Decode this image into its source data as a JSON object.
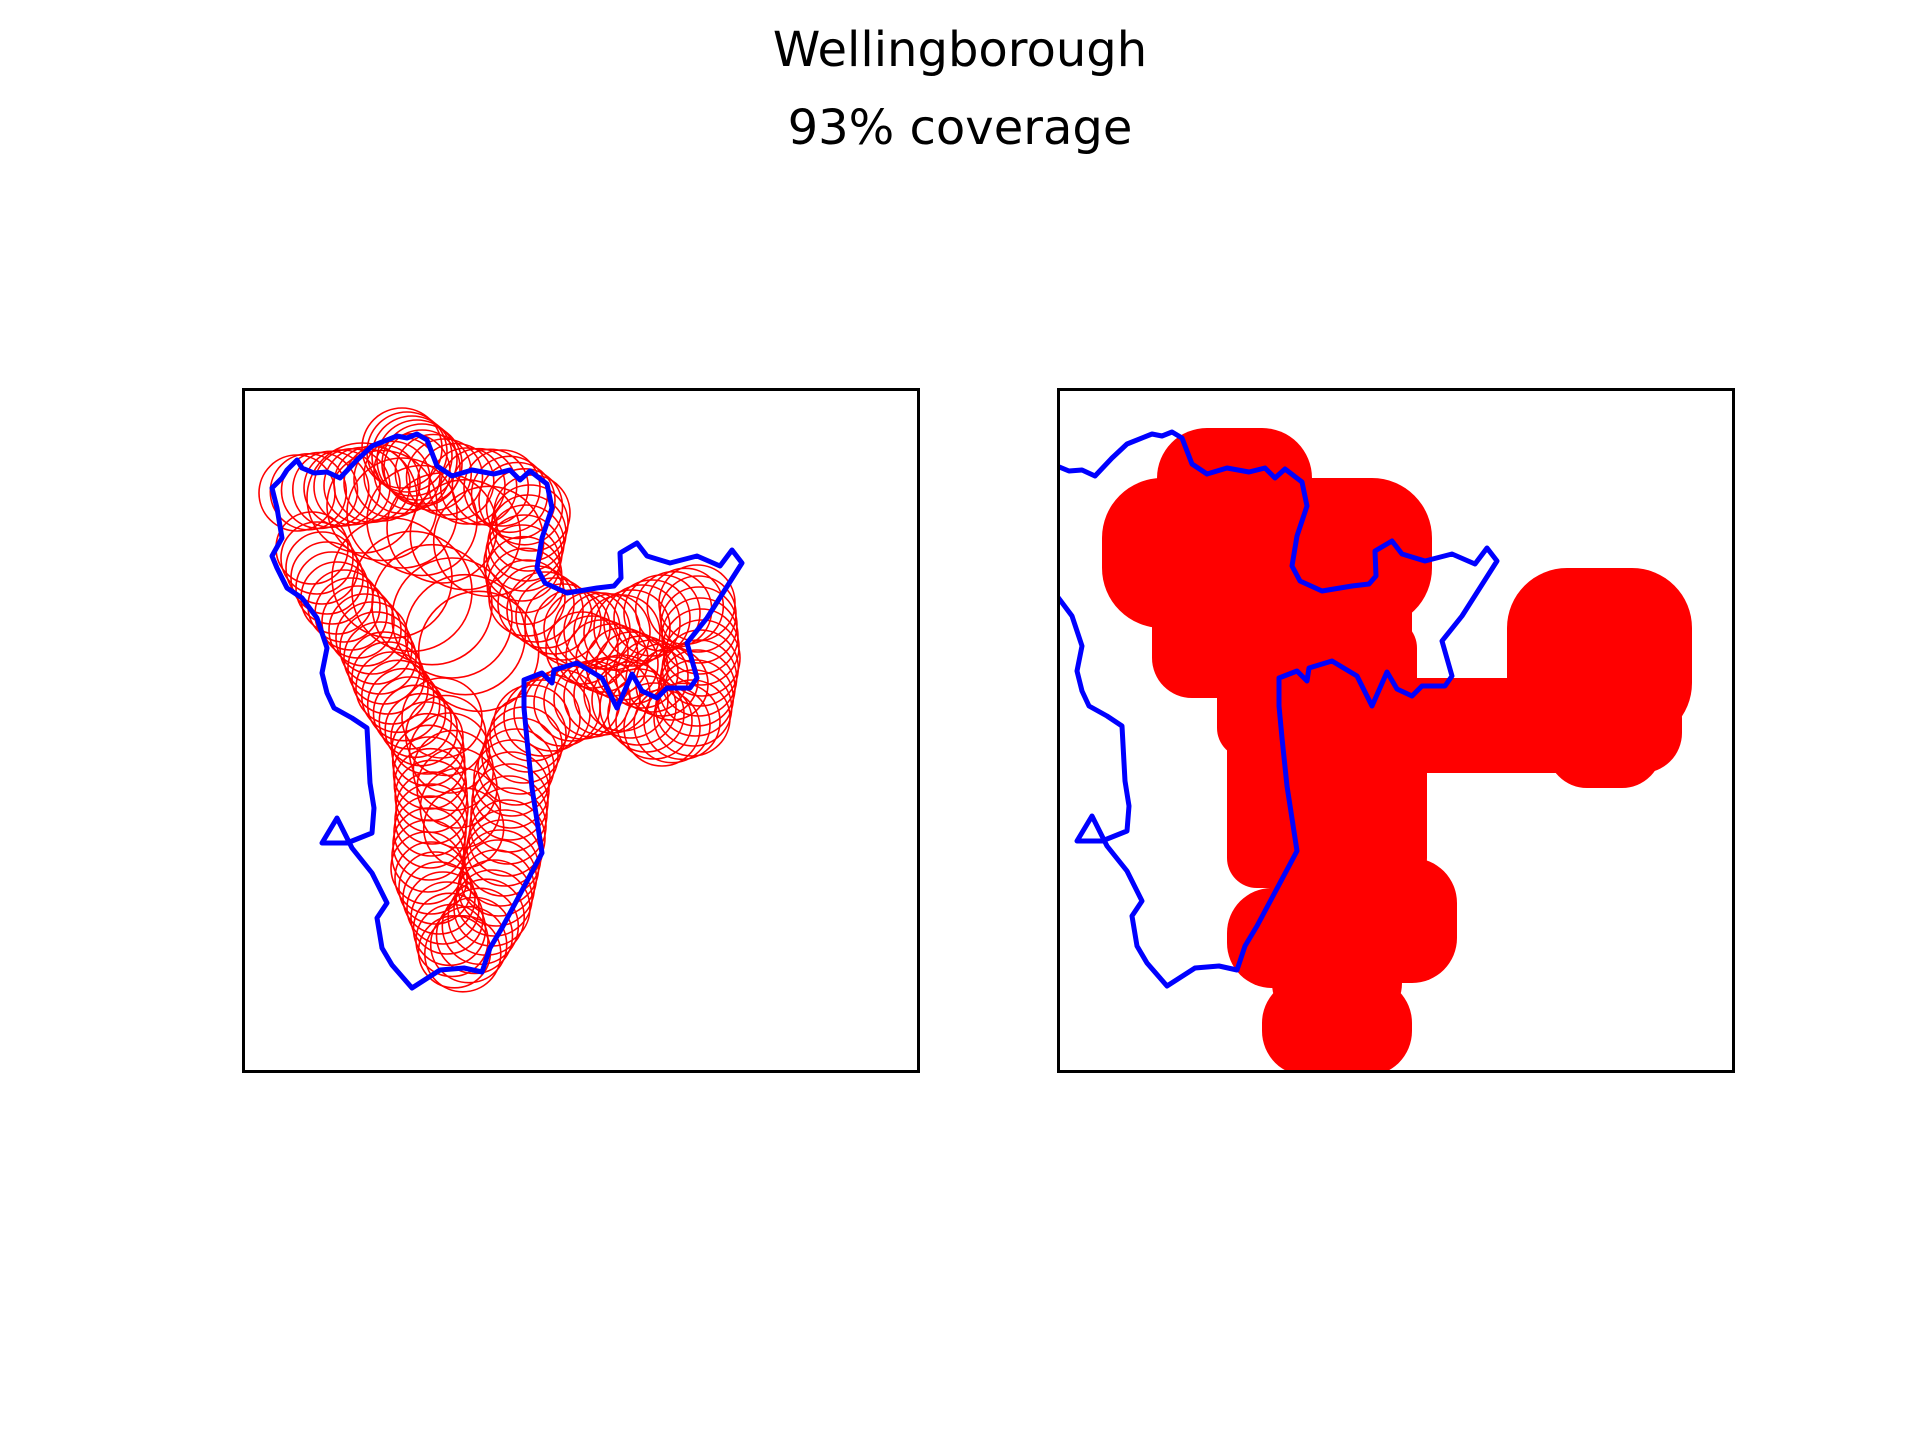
{
  "figure": {
    "title": "Wellingborough",
    "subtitle": "93% coverage"
  },
  "colors": {
    "boundary": "#0000ff",
    "coverage": "#ff0000",
    "frame": "#000000",
    "background": "#ffffff"
  },
  "panels": [
    {
      "name": "coverage-circles",
      "style": "outlined-circles"
    },
    {
      "name": "coverage-union",
      "style": "filled-union"
    }
  ]
}
